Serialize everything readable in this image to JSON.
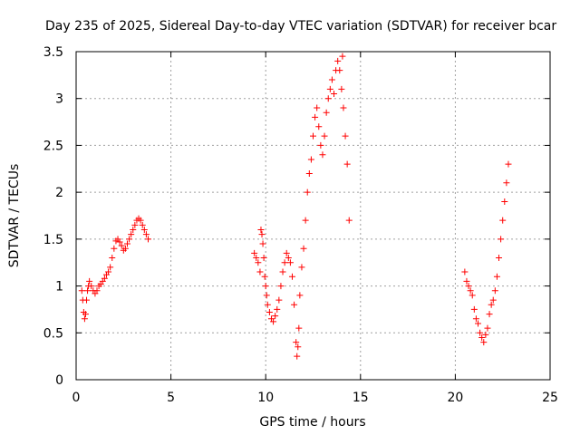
{
  "chart_data": {
    "type": "scatter",
    "title": "Day 235 of 2025, Sidereal Day-to-day VTEC variation (SDTVAR) for receiver bcar",
    "xlabel": "GPS time / hours",
    "ylabel": "SDTVAR / TECUs",
    "xlim": [
      0,
      25
    ],
    "ylim": [
      0,
      3.5
    ],
    "xticks": [
      0,
      5,
      10,
      15,
      20,
      25
    ],
    "xtick_labels": [
      "0",
      "5",
      "10",
      "15",
      "20",
      "25"
    ],
    "yticks": [
      0,
      0.5,
      1,
      1.5,
      2,
      2.5,
      3,
      3.5
    ],
    "ytick_labels": [
      "0",
      "0.5",
      "1",
      "1.5",
      "2",
      "2.5",
      "3",
      "3.5"
    ],
    "grid": true,
    "marker": "+",
    "marker_color": "#ff0000",
    "series": [
      {
        "name": "SDTVAR",
        "points": [
          [
            0.3,
            0.95
          ],
          [
            0.35,
            0.85
          ],
          [
            0.4,
            0.72
          ],
          [
            0.45,
            0.65
          ],
          [
            0.5,
            0.7
          ],
          [
            0.55,
            0.85
          ],
          [
            0.6,
            0.95
          ],
          [
            0.65,
            1.0
          ],
          [
            0.7,
            1.05
          ],
          [
            0.8,
            1.0
          ],
          [
            0.9,
            0.95
          ],
          [
            1.0,
            0.92
          ],
          [
            1.1,
            0.95
          ],
          [
            1.2,
            1.0
          ],
          [
            1.3,
            1.02
          ],
          [
            1.4,
            1.05
          ],
          [
            1.5,
            1.08
          ],
          [
            1.6,
            1.12
          ],
          [
            1.7,
            1.15
          ],
          [
            1.8,
            1.2
          ],
          [
            1.9,
            1.3
          ],
          [
            2.0,
            1.4
          ],
          [
            2.1,
            1.48
          ],
          [
            2.2,
            1.5
          ],
          [
            2.3,
            1.47
          ],
          [
            2.4,
            1.43
          ],
          [
            2.5,
            1.38
          ],
          [
            2.6,
            1.4
          ],
          [
            2.7,
            1.45
          ],
          [
            2.8,
            1.5
          ],
          [
            2.9,
            1.55
          ],
          [
            3.0,
            1.6
          ],
          [
            3.1,
            1.65
          ],
          [
            3.2,
            1.7
          ],
          [
            3.3,
            1.72
          ],
          [
            3.4,
            1.7
          ],
          [
            3.5,
            1.65
          ],
          [
            3.6,
            1.6
          ],
          [
            3.7,
            1.55
          ],
          [
            3.8,
            1.5
          ],
          [
            9.4,
            1.35
          ],
          [
            9.5,
            1.3
          ],
          [
            9.6,
            1.25
          ],
          [
            9.7,
            1.15
          ],
          [
            9.75,
            1.6
          ],
          [
            9.8,
            1.55
          ],
          [
            9.85,
            1.45
          ],
          [
            9.9,
            1.3
          ],
          [
            9.95,
            1.1
          ],
          [
            10.0,
            1.0
          ],
          [
            10.05,
            0.9
          ],
          [
            10.1,
            0.8
          ],
          [
            10.2,
            0.72
          ],
          [
            10.3,
            0.65
          ],
          [
            10.4,
            0.62
          ],
          [
            10.5,
            0.68
          ],
          [
            10.6,
            0.75
          ],
          [
            10.7,
            0.85
          ],
          [
            10.8,
            1.0
          ],
          [
            10.9,
            1.15
          ],
          [
            11.0,
            1.25
          ],
          [
            11.1,
            1.35
          ],
          [
            11.2,
            1.3
          ],
          [
            11.3,
            1.25
          ],
          [
            11.4,
            1.1
          ],
          [
            11.5,
            0.8
          ],
          [
            11.6,
            0.4
          ],
          [
            11.65,
            0.25
          ],
          [
            11.7,
            0.35
          ],
          [
            11.75,
            0.55
          ],
          [
            11.8,
            0.9
          ],
          [
            11.9,
            1.2
          ],
          [
            12.0,
            1.4
          ],
          [
            12.1,
            1.7
          ],
          [
            12.2,
            2.0
          ],
          [
            12.3,
            2.2
          ],
          [
            12.4,
            2.35
          ],
          [
            12.5,
            2.6
          ],
          [
            12.6,
            2.8
          ],
          [
            12.7,
            2.9
          ],
          [
            12.8,
            2.7
          ],
          [
            12.9,
            2.5
          ],
          [
            13.0,
            2.4
          ],
          [
            13.1,
            2.6
          ],
          [
            13.2,
            2.85
          ],
          [
            13.3,
            3.0
          ],
          [
            13.4,
            3.1
          ],
          [
            13.5,
            3.2
          ],
          [
            13.6,
            3.05
          ],
          [
            13.7,
            3.3
          ],
          [
            13.8,
            3.4
          ],
          [
            13.9,
            3.3
          ],
          [
            14.0,
            3.1
          ],
          [
            14.05,
            3.45
          ],
          [
            14.1,
            2.9
          ],
          [
            14.2,
            2.6
          ],
          [
            14.3,
            2.3
          ],
          [
            14.4,
            1.7
          ],
          [
            20.5,
            1.15
          ],
          [
            20.6,
            1.05
          ],
          [
            20.7,
            1.0
          ],
          [
            20.8,
            0.95
          ],
          [
            20.9,
            0.9
          ],
          [
            21.0,
            0.75
          ],
          [
            21.1,
            0.65
          ],
          [
            21.2,
            0.6
          ],
          [
            21.3,
            0.5
          ],
          [
            21.4,
            0.45
          ],
          [
            21.5,
            0.4
          ],
          [
            21.6,
            0.48
          ],
          [
            21.7,
            0.55
          ],
          [
            21.8,
            0.7
          ],
          [
            21.9,
            0.8
          ],
          [
            22.0,
            0.85
          ],
          [
            22.1,
            0.95
          ],
          [
            22.2,
            1.1
          ],
          [
            22.3,
            1.3
          ],
          [
            22.4,
            1.5
          ],
          [
            22.5,
            1.7
          ],
          [
            22.6,
            1.9
          ],
          [
            22.7,
            2.1
          ],
          [
            22.8,
            2.3
          ]
        ]
      }
    ]
  }
}
